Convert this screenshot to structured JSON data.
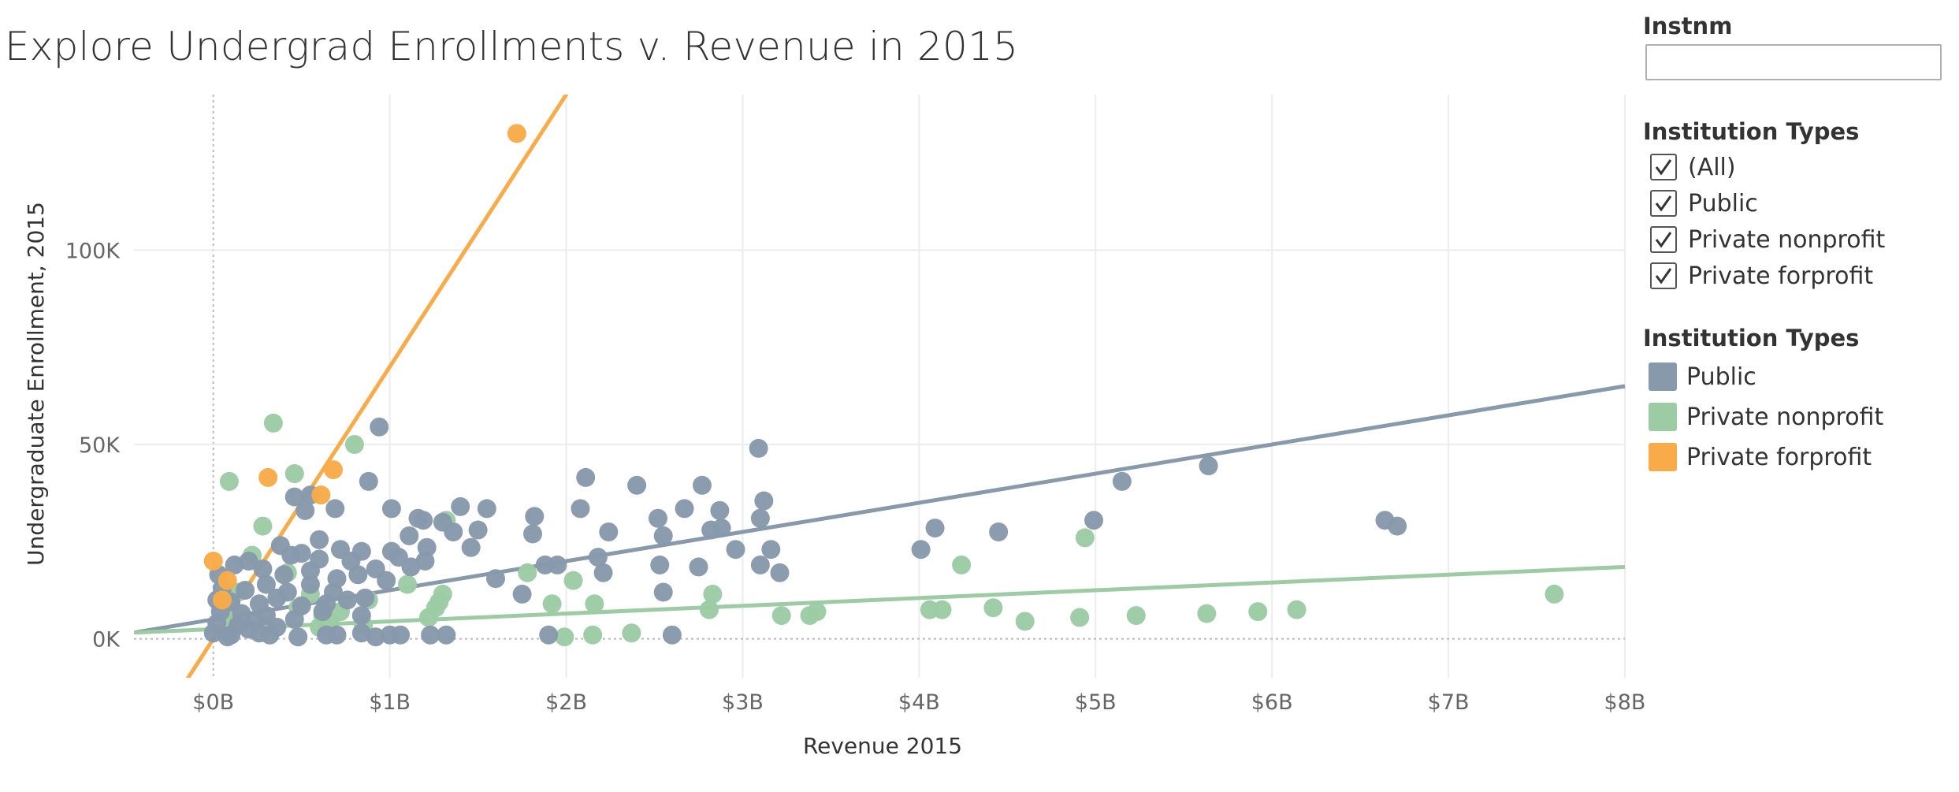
{
  "title": "Explore Undergrad Enrollments v. Revenue in 2015",
  "filter": {
    "label": "Instnm",
    "value": "",
    "placeholder": ""
  },
  "type_filter": {
    "title": "Institution Types",
    "options": [
      {
        "label": "(All)",
        "checked": true
      },
      {
        "label": "Public",
        "checked": true
      },
      {
        "label": "Private nonprofit",
        "checked": true
      },
      {
        "label": "Private forprofit",
        "checked": true
      }
    ]
  },
  "legend": {
    "title": "Institution Types",
    "items": [
      {
        "label": "Public",
        "color": "#8799ab"
      },
      {
        "label": "Private nonprofit",
        "color": "#9ccba4"
      },
      {
        "label": "Private forprofit",
        "color": "#f8ab48"
      }
    ]
  },
  "chart_data": {
    "type": "scatter",
    "xlabel": "Revenue 2015",
    "ylabel": "Undergraduate Enrollment, 2015",
    "xlim": [
      -0.45,
      8.0
    ],
    "ylim": [
      -10000,
      140000
    ],
    "x_ticks": [
      0,
      1,
      2,
      3,
      4,
      5,
      6,
      7,
      8
    ],
    "x_tick_labels": [
      "$0B",
      "$1B",
      "$2B",
      "$3B",
      "$4B",
      "$5B",
      "$6B",
      "$7B",
      "$8B"
    ],
    "y_ticks": [
      0,
      50000,
      100000
    ],
    "y_tick_labels": [
      "0K",
      "50K",
      "100K"
    ],
    "x_unit": "billions USD",
    "grid": true,
    "series": [
      {
        "name": "Public",
        "color": "#8799ab",
        "trend": {
          "slope": 7500,
          "intercept": 5000
        },
        "points": [
          [
            0.94,
            54500
          ],
          [
            0.46,
            36500
          ],
          [
            0.88,
            40500
          ],
          [
            1.01,
            33500
          ],
          [
            0.69,
            33500
          ],
          [
            0.55,
            37000
          ],
          [
            0.52,
            33000
          ],
          [
            1.19,
            30500
          ],
          [
            1.36,
            27500
          ],
          [
            1.21,
            23500
          ],
          [
            1.01,
            22500
          ],
          [
            0.92,
            18000
          ],
          [
            0.78,
            20000
          ],
          [
            0.6,
            25500
          ],
          [
            0.5,
            22000
          ],
          [
            0.38,
            24000
          ],
          [
            0.2,
            20000
          ],
          [
            0.12,
            19000
          ],
          [
            0.03,
            16500
          ],
          [
            0.05,
            13000
          ],
          [
            0.02,
            10000
          ],
          [
            0.04,
            7000
          ],
          [
            0.02,
            4000
          ],
          [
            0.0,
            1500
          ],
          [
            0.1,
            1000
          ],
          [
            0.2,
            2500
          ],
          [
            0.3,
            6000
          ],
          [
            0.42,
            12000
          ],
          [
            0.55,
            14000
          ],
          [
            0.68,
            12000
          ],
          [
            0.64,
            9000
          ],
          [
            0.46,
            5000
          ],
          [
            0.36,
            3000
          ],
          [
            0.32,
            1000
          ],
          [
            0.48,
            500
          ],
          [
            0.64,
            1000
          ],
          [
            0.7,
            1000
          ],
          [
            0.84,
            6000
          ],
          [
            0.84,
            1500
          ],
          [
            0.92,
            500
          ],
          [
            1.0,
            1000
          ],
          [
            1.06,
            1000
          ],
          [
            1.23,
            1000
          ],
          [
            1.32,
            1000
          ],
          [
            1.12,
            18500
          ],
          [
            1.11,
            26500
          ],
          [
            1.16,
            31000
          ],
          [
            1.3,
            30000
          ],
          [
            1.4,
            34000
          ],
          [
            1.55,
            33500
          ],
          [
            1.5,
            28000
          ],
          [
            1.46,
            23500
          ],
          [
            1.2,
            20000
          ],
          [
            1.05,
            21000
          ],
          [
            0.98,
            15000
          ],
          [
            0.82,
            16500
          ],
          [
            0.7,
            15500
          ],
          [
            0.55,
            17500
          ],
          [
            0.4,
            16500
          ],
          [
            0.3,
            14000
          ],
          [
            0.18,
            12500
          ],
          [
            0.1,
            9500
          ],
          [
            0.16,
            6500
          ],
          [
            0.26,
            9000
          ],
          [
            0.36,
            10500
          ],
          [
            0.28,
            18000
          ],
          [
            0.44,
            21500
          ],
          [
            0.6,
            20500
          ],
          [
            0.72,
            23000
          ],
          [
            0.84,
            22500
          ],
          [
            0.86,
            10500
          ],
          [
            0.76,
            10000
          ],
          [
            0.62,
            7000
          ],
          [
            0.5,
            8500
          ],
          [
            0.24,
            4500
          ],
          [
            0.14,
            3500
          ],
          [
            0.08,
            500
          ],
          [
            0.26,
            1500
          ],
          [
            1.6,
            15500
          ],
          [
            1.75,
            11500
          ],
          [
            1.81,
            27000
          ],
          [
            1.82,
            31500
          ],
          [
            1.88,
            19000
          ],
          [
            1.95,
            19000
          ],
          [
            1.9,
            1000
          ],
          [
            2.11,
            41500
          ],
          [
            2.18,
            21000
          ],
          [
            2.08,
            33500
          ],
          [
            2.21,
            17000
          ],
          [
            2.24,
            27500
          ],
          [
            2.4,
            39500
          ],
          [
            2.52,
            31000
          ],
          [
            2.55,
            26500
          ],
          [
            2.53,
            19000
          ],
          [
            2.55,
            12000
          ],
          [
            2.6,
            1000
          ],
          [
            2.67,
            33500
          ],
          [
            2.75,
            18500
          ],
          [
            2.77,
            39500
          ],
          [
            2.82,
            28000
          ],
          [
            2.87,
            33000
          ],
          [
            2.88,
            28500
          ],
          [
            2.96,
            23000
          ],
          [
            3.09,
            49000
          ],
          [
            3.1,
            31000
          ],
          [
            3.12,
            35500
          ],
          [
            3.1,
            19000
          ],
          [
            3.16,
            23000
          ],
          [
            3.21,
            17000
          ],
          [
            4.01,
            23000
          ],
          [
            4.09,
            28500
          ],
          [
            4.45,
            27500
          ],
          [
            4.99,
            30500
          ],
          [
            5.15,
            40500
          ],
          [
            5.64,
            44500
          ],
          [
            6.64,
            30500
          ],
          [
            6.71,
            29000
          ]
        ]
      },
      {
        "name": "Private nonprofit",
        "color": "#9ccba4",
        "trend": {
          "slope": 2000,
          "intercept": 2500
        },
        "points": [
          [
            0.34,
            55500
          ],
          [
            0.8,
            50000
          ],
          [
            0.46,
            42500
          ],
          [
            0.09,
            40500
          ],
          [
            0.28,
            29000
          ],
          [
            0.22,
            21500
          ],
          [
            0.42,
            17000
          ],
          [
            0.55,
            11500
          ],
          [
            0.48,
            8000
          ],
          [
            0.62,
            6000
          ],
          [
            0.66,
            4500
          ],
          [
            0.72,
            7000
          ],
          [
            0.85,
            3500
          ],
          [
            0.88,
            10000
          ],
          [
            1.1,
            14000
          ],
          [
            1.22,
            5500
          ],
          [
            1.26,
            8000
          ],
          [
            1.28,
            9500
          ],
          [
            1.3,
            11500
          ],
          [
            1.32,
            30500
          ],
          [
            1.78,
            17000
          ],
          [
            1.92,
            9000
          ],
          [
            2.04,
            15000
          ],
          [
            2.16,
            9000
          ],
          [
            1.99,
            500
          ],
          [
            2.15,
            1000
          ],
          [
            2.37,
            1500
          ],
          [
            2.81,
            7500
          ],
          [
            2.83,
            11500
          ],
          [
            3.22,
            6000
          ],
          [
            3.38,
            6000
          ],
          [
            3.42,
            7000
          ],
          [
            4.06,
            7500
          ],
          [
            4.13,
            7500
          ],
          [
            4.24,
            19000
          ],
          [
            4.42,
            8000
          ],
          [
            4.6,
            4500
          ],
          [
            4.91,
            5500
          ],
          [
            4.94,
            26000
          ],
          [
            5.23,
            6000
          ],
          [
            5.63,
            6500
          ],
          [
            5.92,
            7000
          ],
          [
            6.14,
            7500
          ],
          [
            7.6,
            11500
          ],
          [
            0.1,
            5000
          ],
          [
            0.14,
            12000
          ],
          [
            0.3,
            3500
          ],
          [
            0.6,
            3000
          ]
        ]
      },
      {
        "name": "Private forprofit",
        "color": "#f8ab48",
        "trend": {
          "slope": 70000,
          "intercept": 0
        },
        "points": [
          [
            1.72,
            130000
          ],
          [
            0.31,
            41500
          ],
          [
            0.68,
            43500
          ],
          [
            0.61,
            37000
          ],
          [
            0.0,
            20000
          ],
          [
            0.08,
            15000
          ],
          [
            0.05,
            10000
          ]
        ]
      }
    ]
  }
}
